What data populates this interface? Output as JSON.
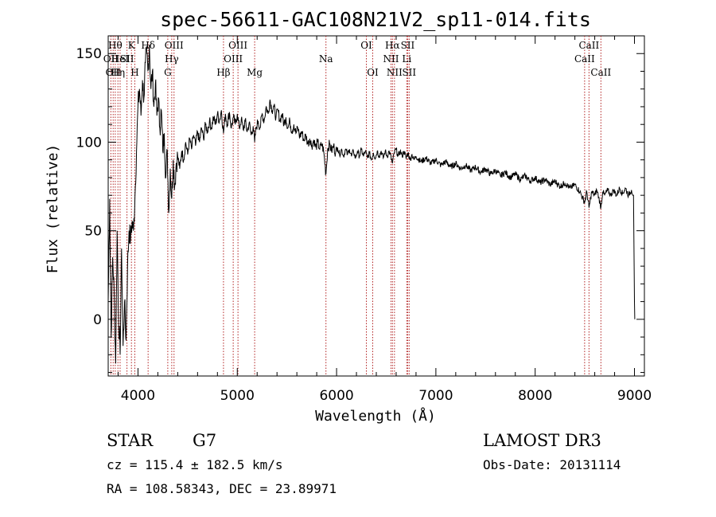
{
  "chart_data": {
    "type": "line",
    "title": "spec-56611-GAC108N21V2_sp11-014.fits",
    "xlabel": "Wavelength (Å)",
    "ylabel": "Flux (relative)",
    "xlim": [
      3700,
      9100
    ],
    "ylim": [
      -32,
      160
    ],
    "x_ticks": [
      4000,
      5000,
      6000,
      7000,
      8000,
      9000
    ],
    "y_ticks": [
      0,
      50,
      100,
      150
    ],
    "grid": false,
    "line_color": "#000000",
    "marker_color": "#b22222",
    "spectrum": [
      [
        3700,
        10
      ],
      [
        3715,
        68
      ],
      [
        3730,
        -10
      ],
      [
        3745,
        35
      ],
      [
        3760,
        15
      ],
      [
        3775,
        -25
      ],
      [
        3790,
        50
      ],
      [
        3805,
        0
      ],
      [
        3820,
        -20
      ],
      [
        3835,
        40
      ],
      [
        3850,
        -15
      ],
      [
        3865,
        10
      ],
      [
        3880,
        -12
      ],
      [
        3895,
        30
      ],
      [
        3910,
        50
      ],
      [
        3925,
        45
      ],
      [
        3940,
        55
      ],
      [
        3955,
        50
      ],
      [
        3970,
        70
      ],
      [
        3985,
        95
      ],
      [
        4000,
        120
      ],
      [
        4015,
        130
      ],
      [
        4030,
        115
      ],
      [
        4045,
        135
      ],
      [
        4060,
        125
      ],
      [
        4075,
        145
      ],
      [
        4090,
        150
      ],
      [
        4100,
        140
      ],
      [
        4115,
        155
      ],
      [
        4130,
        130
      ],
      [
        4145,
        140
      ],
      [
        4160,
        120
      ],
      [
        4175,
        133
      ],
      [
        4190,
        115
      ],
      [
        4205,
        125
      ],
      [
        4220,
        108
      ],
      [
        4235,
        118
      ],
      [
        4250,
        95
      ],
      [
        4265,
        105
      ],
      [
        4280,
        80
      ],
      [
        4295,
        95
      ],
      [
        4310,
        60
      ],
      [
        4325,
        85
      ],
      [
        4340,
        68
      ],
      [
        4355,
        90
      ],
      [
        4370,
        75
      ],
      [
        4385,
        88
      ],
      [
        4400,
        92
      ],
      [
        4420,
        85
      ],
      [
        4440,
        95
      ],
      [
        4460,
        90
      ],
      [
        4480,
        100
      ],
      [
        4500,
        93
      ],
      [
        4520,
        102
      ],
      [
        4540,
        96
      ],
      [
        4560,
        104
      ],
      [
        4580,
        98
      ],
      [
        4600,
        106
      ],
      [
        4620,
        100
      ],
      [
        4640,
        108
      ],
      [
        4660,
        102
      ],
      [
        4680,
        110
      ],
      [
        4700,
        106
      ],
      [
        4720,
        112
      ],
      [
        4740,
        108
      ],
      [
        4760,
        114
      ],
      [
        4780,
        110
      ],
      [
        4800,
        116
      ],
      [
        4820,
        112
      ],
      [
        4840,
        118
      ],
      [
        4861,
        105
      ],
      [
        4880,
        116
      ],
      [
        4900,
        110
      ],
      [
        4920,
        117
      ],
      [
        4940,
        108
      ],
      [
        4960,
        114
      ],
      [
        4980,
        110
      ],
      [
        5000,
        116
      ],
      [
        5020,
        108
      ],
      [
        5040,
        113
      ],
      [
        5060,
        107
      ],
      [
        5080,
        112
      ],
      [
        5100,
        106
      ],
      [
        5120,
        111
      ],
      [
        5140,
        104
      ],
      [
        5160,
        109
      ],
      [
        5175,
        100
      ],
      [
        5190,
        108
      ],
      [
        5210,
        112
      ],
      [
        5230,
        108
      ],
      [
        5250,
        116
      ],
      [
        5270,
        112
      ],
      [
        5290,
        120
      ],
      [
        5310,
        116
      ],
      [
        5330,
        124
      ],
      [
        5350,
        118
      ],
      [
        5370,
        120
      ],
      [
        5390,
        114
      ],
      [
        5410,
        118
      ],
      [
        5430,
        112
      ],
      [
        5450,
        116
      ],
      [
        5470,
        110
      ],
      [
        5490,
        114
      ],
      [
        5510,
        108
      ],
      [
        5530,
        112
      ],
      [
        5550,
        106
      ],
      [
        5570,
        110
      ],
      [
        5590,
        105
      ],
      [
        5610,
        108
      ],
      [
        5630,
        103
      ],
      [
        5650,
        106
      ],
      [
        5670,
        101
      ],
      [
        5690,
        104
      ],
      [
        5710,
        99
      ],
      [
        5730,
        102
      ],
      [
        5750,
        98
      ],
      [
        5770,
        101
      ],
      [
        5790,
        97
      ],
      [
        5810,
        100
      ],
      [
        5830,
        96
      ],
      [
        5850,
        99
      ],
      [
        5870,
        95
      ],
      [
        5893,
        82
      ],
      [
        5910,
        96
      ],
      [
        5930,
        99
      ],
      [
        5950,
        95
      ],
      [
        5970,
        98
      ],
      [
        5990,
        94
      ],
      [
        6010,
        97
      ],
      [
        6030,
        93
      ],
      [
        6050,
        96
      ],
      [
        6070,
        92
      ],
      [
        6090,
        96
      ],
      [
        6110,
        93
      ],
      [
        6130,
        96
      ],
      [
        6150,
        92
      ],
      [
        6170,
        95
      ],
      [
        6190,
        91
      ],
      [
        6210,
        95
      ],
      [
        6230,
        92
      ],
      [
        6250,
        96
      ],
      [
        6270,
        92
      ],
      [
        6290,
        95
      ],
      [
        6310,
        91
      ],
      [
        6330,
        94
      ],
      [
        6350,
        90
      ],
      [
        6370,
        94
      ],
      [
        6390,
        91
      ],
      [
        6410,
        95
      ],
      [
        6430,
        92
      ],
      [
        6450,
        95
      ],
      [
        6470,
        91
      ],
      [
        6490,
        95
      ],
      [
        6510,
        92
      ],
      [
        6530,
        95
      ],
      [
        6563,
        88
      ],
      [
        6580,
        94
      ],
      [
        6600,
        96
      ],
      [
        6620,
        92
      ],
      [
        6640,
        95
      ],
      [
        6660,
        92
      ],
      [
        6680,
        95
      ],
      [
        6700,
        91
      ],
      [
        6720,
        94
      ],
      [
        6740,
        90
      ],
      [
        6760,
        93
      ],
      [
        6780,
        90
      ],
      [
        6800,
        92
      ],
      [
        6850,
        89
      ],
      [
        6900,
        91
      ],
      [
        6950,
        88
      ],
      [
        7000,
        90
      ],
      [
        7050,
        87
      ],
      [
        7100,
        89
      ],
      [
        7150,
        86
      ],
      [
        7200,
        88
      ],
      [
        7250,
        85
      ],
      [
        7300,
        87
      ],
      [
        7350,
        84
      ],
      [
        7400,
        86
      ],
      [
        7450,
        83
      ],
      [
        7500,
        85
      ],
      [
        7550,
        82
      ],
      [
        7600,
        84
      ],
      [
        7650,
        81
      ],
      [
        7700,
        83
      ],
      [
        7750,
        80
      ],
      [
        7800,
        82
      ],
      [
        7850,
        79
      ],
      [
        7900,
        81
      ],
      [
        7950,
        78
      ],
      [
        8000,
        80
      ],
      [
        8050,
        77
      ],
      [
        8100,
        79
      ],
      [
        8150,
        76
      ],
      [
        8200,
        78
      ],
      [
        8250,
        75
      ],
      [
        8300,
        77
      ],
      [
        8350,
        74
      ],
      [
        8400,
        76
      ],
      [
        8450,
        72
      ],
      [
        8498,
        66
      ],
      [
        8520,
        72
      ],
      [
        8542,
        63
      ],
      [
        8570,
        72
      ],
      [
        8600,
        70
      ],
      [
        8620,
        73
      ],
      [
        8640,
        69
      ],
      [
        8662,
        63
      ],
      [
        8680,
        72
      ],
      [
        8700,
        70
      ],
      [
        8730,
        73
      ],
      [
        8760,
        70
      ],
      [
        8790,
        73
      ],
      [
        8820,
        70
      ],
      [
        8850,
        74
      ],
      [
        8880,
        71
      ],
      [
        8910,
        74
      ],
      [
        8940,
        70
      ],
      [
        8970,
        73
      ],
      [
        8990,
        70
      ],
      [
        9000,
        10
      ],
      [
        9003,
        0
      ]
    ],
    "lines": [
      {
        "wave": 3727,
        "row": 2,
        "label": "OII"
      },
      {
        "wave": 3750,
        "row": 3,
        "label": "OII"
      },
      {
        "wave": 3771,
        "row": 1,
        "label": "Hθ"
      },
      {
        "wave": 3798,
        "row": 3,
        "label": "Hη"
      },
      {
        "wave": 3820,
        "row": 2,
        "label": "HeI"
      },
      {
        "wave": 3889,
        "row": 2,
        "label": "SII"
      },
      {
        "wave": 3934,
        "row": 1,
        "label": "K"
      },
      {
        "wave": 3968,
        "row": 3,
        "label": "H"
      },
      {
        "wave": 4102,
        "row": 1,
        "label": "Hδ"
      },
      {
        "wave": 4300,
        "row": 3,
        "label": "G"
      },
      {
        "wave": 4340,
        "row": 2,
        "label": "Hγ"
      },
      {
        "wave": 4363,
        "row": 1,
        "label": "OIII"
      },
      {
        "wave": 4861,
        "row": 3,
        "label": "Hβ"
      },
      {
        "wave": 4959,
        "row": 2,
        "label": "OIII"
      },
      {
        "wave": 5007,
        "row": 1,
        "label": "OIII"
      },
      {
        "wave": 5175,
        "row": 3,
        "label": "Mg"
      },
      {
        "wave": 5893,
        "row": 2,
        "label": "Na"
      },
      {
        "wave": 6300,
        "row": 1,
        "label": "OI"
      },
      {
        "wave": 6364,
        "row": 3,
        "label": "OI"
      },
      {
        "wave": 6548,
        "row": 2,
        "label": "NII"
      },
      {
        "wave": 6563,
        "row": 1,
        "label": "Hα"
      },
      {
        "wave": 6583,
        "row": 3,
        "label": "NII"
      },
      {
        "wave": 6707,
        "row": 2,
        "label": "Li"
      },
      {
        "wave": 6716,
        "row": 1,
        "label": "SII"
      },
      {
        "wave": 6731,
        "row": 3,
        "label": "SII"
      },
      {
        "wave": 8498,
        "row": 2,
        "label": "CaII"
      },
      {
        "wave": 8542,
        "row": 1,
        "label": "CaII"
      },
      {
        "wave": 8662,
        "row": 3,
        "label": "CaII"
      }
    ]
  },
  "info": {
    "class": "STAR",
    "subclass": "G7",
    "survey": "LAMOST DR3",
    "velocity": "cz = 115.4 ± 182.5 km/s",
    "obs_date": "Obs-Date: 20131114",
    "coords": "RA = 108.58343, DEC =  23.89971"
  }
}
